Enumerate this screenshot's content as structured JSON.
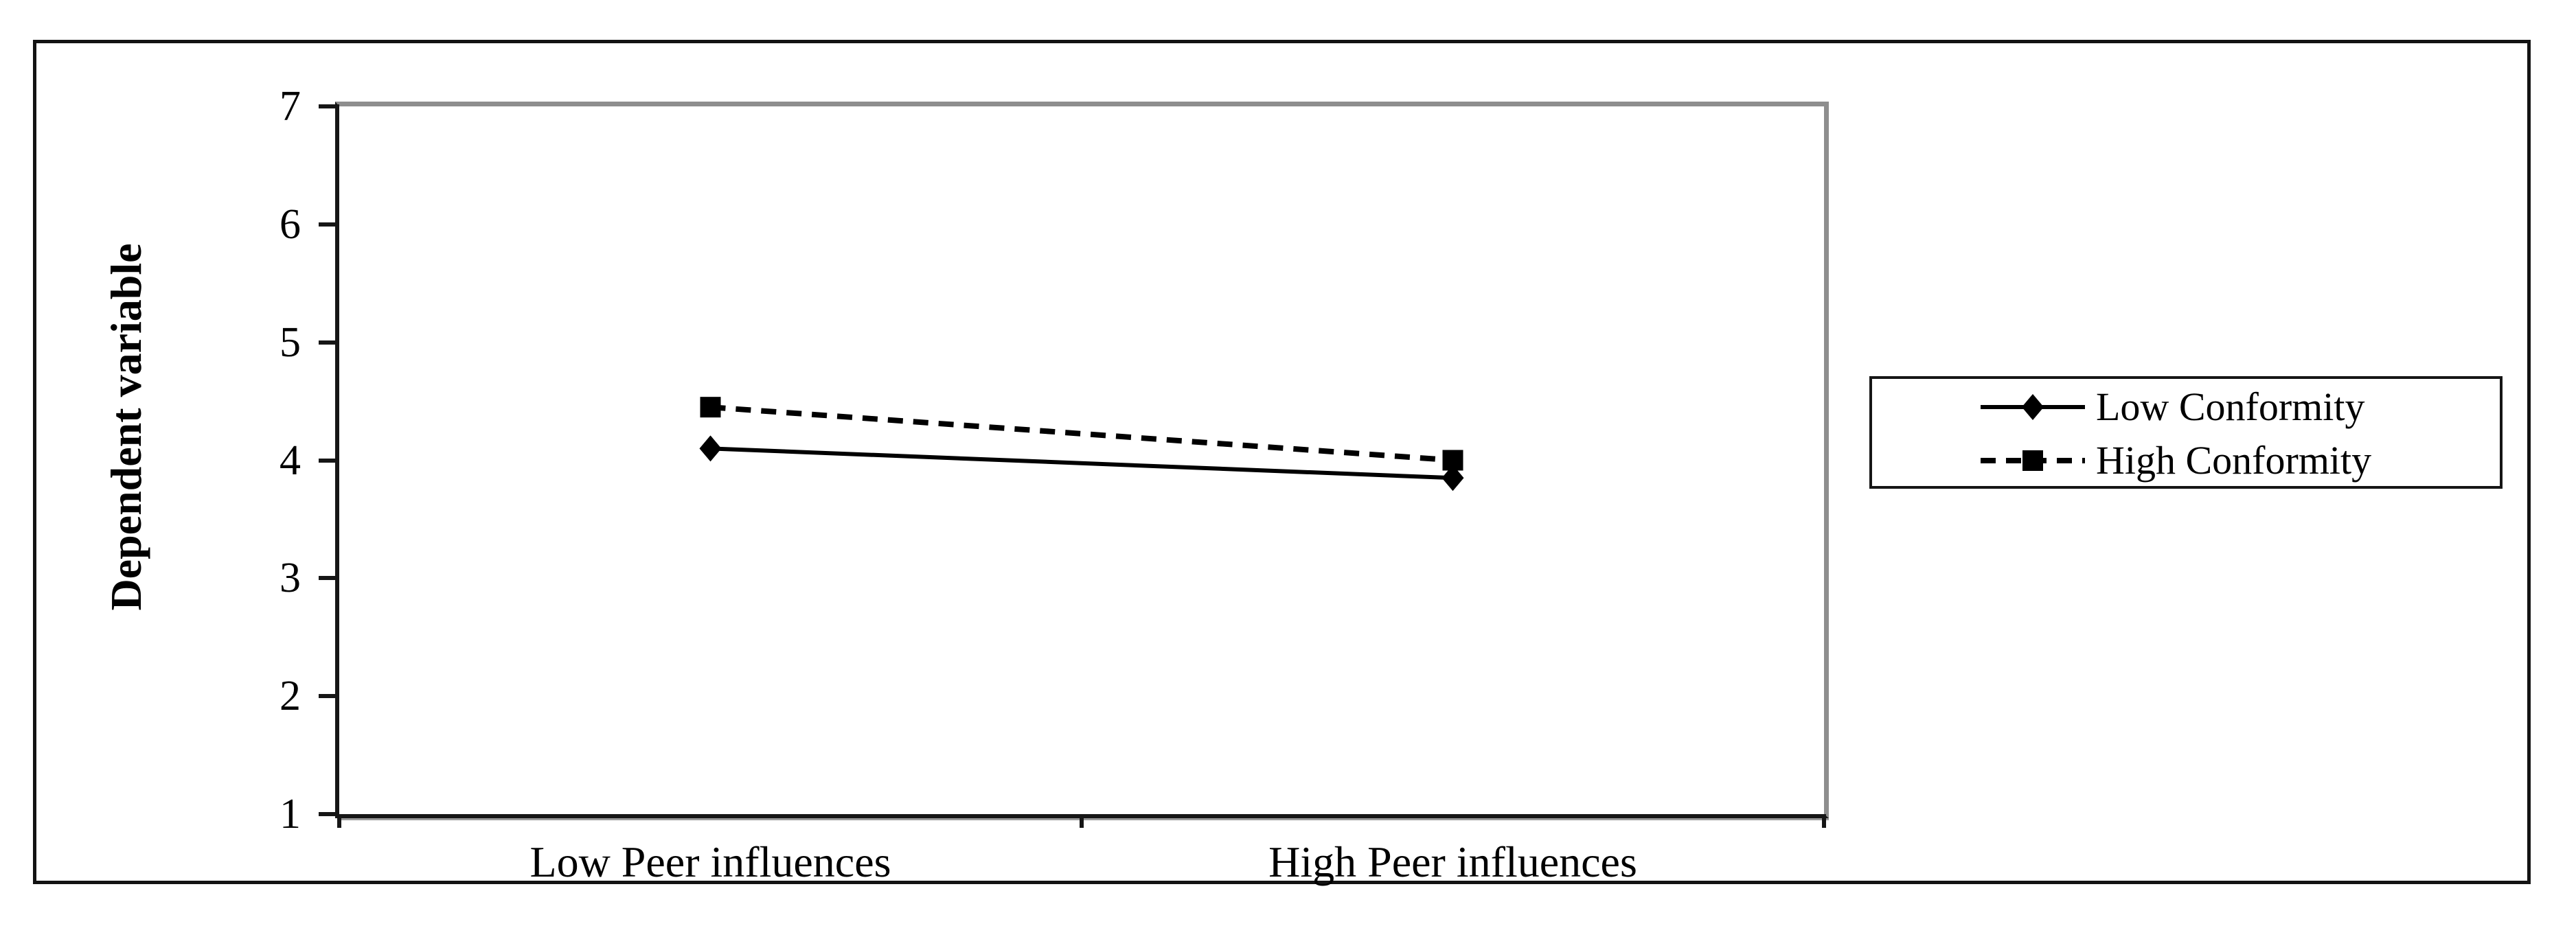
{
  "chart_data": {
    "type": "line",
    "title": "",
    "xlabel": "",
    "ylabel": "Dependent variable",
    "categories": [
      "Low Peer influences",
      "High Peer influences"
    ],
    "series": [
      {
        "name": "Low Conformity",
        "values": [
          4.1,
          3.85
        ],
        "marker": "diamond",
        "line_style": "solid"
      },
      {
        "name": "High Conformity",
        "values": [
          4.45,
          4.0
        ],
        "marker": "square",
        "line_style": "dashed"
      }
    ],
    "ylim": [
      1,
      7
    ],
    "yticks": [
      1,
      2,
      3,
      4,
      5,
      6,
      7
    ],
    "grid": false,
    "legend_position": "right-outside",
    "colors": {
      "series": "#000000",
      "axis": "#161616",
      "plot_border_gray": "#8e8e8e",
      "text": "#000000",
      "background": "#ffffff"
    }
  }
}
